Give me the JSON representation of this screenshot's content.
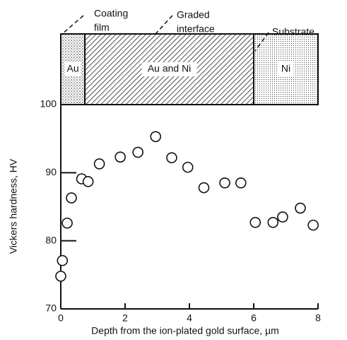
{
  "chart_data": {
    "type": "scatter",
    "x_label": "Depth from the ion-plated gold surface, µm",
    "y_label": "Vickers hardness, HV",
    "x": [
      0,
      0.05,
      0.2,
      0.33,
      0.65,
      0.85,
      1.2,
      1.85,
      2.4,
      2.95,
      3.45,
      3.95,
      4.45,
      5.1,
      5.6,
      6.05,
      6.6,
      6.9,
      7.45,
      7.85
    ],
    "values": [
      74.8,
      77.1,
      82.6,
      86.3,
      89.1,
      88.7,
      91.3,
      92.3,
      93.0,
      95.3,
      92.2,
      90.8,
      87.8,
      88.5,
      88.5,
      82.7,
      82.7,
      83.5,
      84.8,
      82.3
    ],
    "xlim": [
      0,
      8
    ],
    "xticks": [
      0,
      2,
      4,
      6,
      8
    ],
    "ylim": [
      70,
      100
    ],
    "yticks": [
      70,
      80,
      90,
      100
    ],
    "layers": [
      {
        "label": "Au",
        "start": 0,
        "end": 0.75
      },
      {
        "label": "Au and Ni",
        "start": 0.75,
        "end": 6.0
      },
      {
        "label": "Ni",
        "start": 6.0,
        "end": 8
      }
    ],
    "annotations": [
      {
        "lines": [
          "Coating",
          "film"
        ]
      },
      {
        "lines": [
          "Graded",
          "interface"
        ]
      },
      {
        "lines": [
          "Substrate"
        ]
      }
    ]
  }
}
